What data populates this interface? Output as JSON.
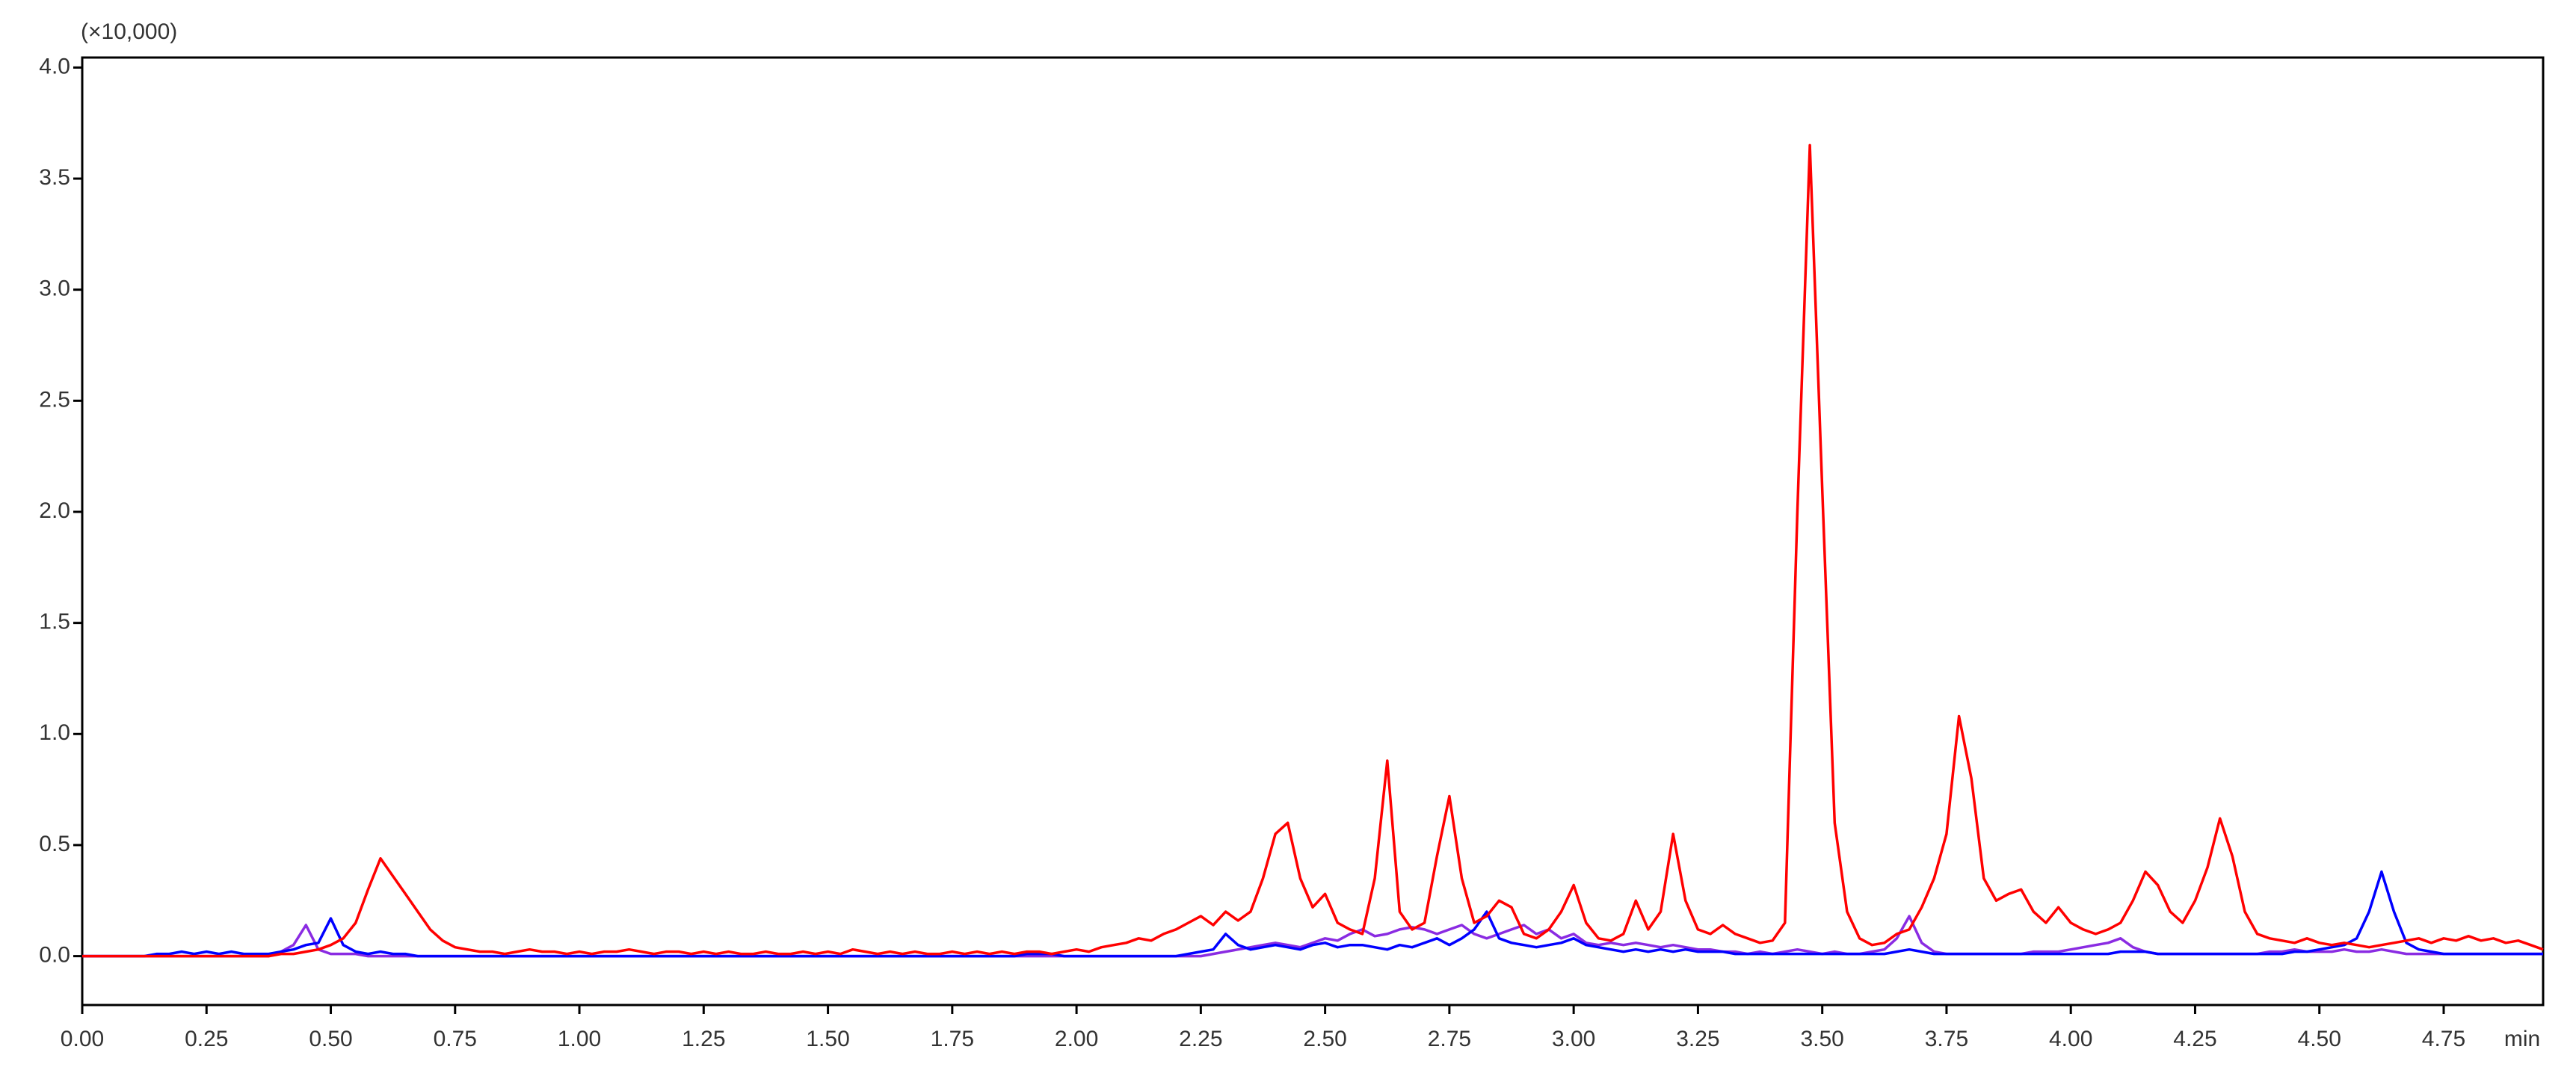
{
  "chart_data": {
    "type": "line",
    "y_unit_label": "(×10,000)",
    "x_label": "min",
    "xlim": [
      0,
      4.95
    ],
    "ylim": [
      -0.22,
      4.045
    ],
    "xticks": [
      {
        "value": 0,
        "label": "0.00"
      },
      {
        "value": 0.25,
        "label": "0.25"
      },
      {
        "value": 0.5,
        "label": "0.50"
      },
      {
        "value": 0.75,
        "label": "0.75"
      },
      {
        "value": 1,
        "label": "1.00"
      },
      {
        "value": 1.25,
        "label": "1.25"
      },
      {
        "value": 1.5,
        "label": "1.50"
      },
      {
        "value": 1.75,
        "label": "1.75"
      },
      {
        "value": 2,
        "label": "2.00"
      },
      {
        "value": 2.25,
        "label": "2.25"
      },
      {
        "value": 2.5,
        "label": "2.50"
      },
      {
        "value": 2.75,
        "label": "2.75"
      },
      {
        "value": 3,
        "label": "3.00"
      },
      {
        "value": 3.25,
        "label": "3.25"
      },
      {
        "value": 3.5,
        "label": "3.50"
      },
      {
        "value": 3.75,
        "label": "3.75"
      },
      {
        "value": 4,
        "label": "4.00"
      },
      {
        "value": 4.25,
        "label": "4.25"
      },
      {
        "value": 4.5,
        "label": "4.50"
      },
      {
        "value": 4.75,
        "label": "4.75"
      }
    ],
    "yticks": [
      {
        "value": 0,
        "label": "0.0"
      },
      {
        "value": 0.5,
        "label": "0.5"
      },
      {
        "value": 1,
        "label": "1.0"
      },
      {
        "value": 1.5,
        "label": "1.5"
      },
      {
        "value": 2,
        "label": "2.0"
      },
      {
        "value": 2.5,
        "label": "2.5"
      },
      {
        "value": 3,
        "label": "3.0"
      },
      {
        "value": 3.5,
        "label": "3.5"
      },
      {
        "value": 4,
        "label": "4.0"
      }
    ],
    "grid": false,
    "x": [
      0,
      0.025,
      0.05,
      0.075,
      0.1,
      0.125,
      0.15,
      0.175,
      0.2,
      0.225,
      0.25,
      0.275,
      0.3,
      0.325,
      0.35,
      0.375,
      0.4,
      0.425,
      0.45,
      0.475,
      0.5,
      0.525,
      0.55,
      0.575,
      0.6,
      0.625,
      0.65,
      0.675,
      0.7,
      0.725,
      0.75,
      0.775,
      0.8,
      0.825,
      0.85,
      0.875,
      0.9,
      0.925,
      0.95,
      0.975,
      1,
      1.025,
      1.05,
      1.075,
      1.1,
      1.125,
      1.15,
      1.175,
      1.2,
      1.225,
      1.25,
      1.275,
      1.3,
      1.325,
      1.35,
      1.375,
      1.4,
      1.425,
      1.45,
      1.475,
      1.5,
      1.525,
      1.55,
      1.575,
      1.6,
      1.625,
      1.65,
      1.675,
      1.7,
      1.725,
      1.75,
      1.775,
      1.8,
      1.825,
      1.85,
      1.875,
      1.9,
      1.925,
      1.95,
      1.975,
      2,
      2.025,
      2.05,
      2.075,
      2.1,
      2.125,
      2.15,
      2.175,
      2.2,
      2.225,
      2.25,
      2.275,
      2.3,
      2.325,
      2.35,
      2.375,
      2.4,
      2.425,
      2.45,
      2.475,
      2.5,
      2.525,
      2.55,
      2.575,
      2.6,
      2.625,
      2.65,
      2.675,
      2.7,
      2.725,
      2.75,
      2.775,
      2.8,
      2.825,
      2.85,
      2.875,
      2.9,
      2.925,
      2.95,
      2.975,
      3,
      3.025,
      3.05,
      3.075,
      3.1,
      3.125,
      3.15,
      3.175,
      3.2,
      3.225,
      3.25,
      3.275,
      3.3,
      3.325,
      3.35,
      3.375,
      3.4,
      3.425,
      3.45,
      3.475,
      3.5,
      3.525,
      3.55,
      3.575,
      3.6,
      3.625,
      3.65,
      3.675,
      3.7,
      3.725,
      3.75,
      3.775,
      3.8,
      3.825,
      3.85,
      3.875,
      3.9,
      3.925,
      3.95,
      3.975,
      4,
      4.025,
      4.05,
      4.075,
      4.1,
      4.125,
      4.15,
      4.175,
      4.2,
      4.225,
      4.25,
      4.275,
      4.3,
      4.325,
      4.35,
      4.375,
      4.4,
      4.425,
      4.45,
      4.475,
      4.5,
      4.525,
      4.55,
      4.575,
      4.6,
      4.625,
      4.65,
      4.675,
      4.7,
      4.725,
      4.75,
      4.775,
      4.8,
      4.825,
      4.85,
      4.875,
      4.9,
      4.925,
      4.95
    ],
    "series": [
      {
        "color": "#8a2be2",
        "values": [
          0,
          0,
          0,
          0,
          0,
          0,
          0,
          0,
          0,
          0,
          0,
          0,
          0,
          0,
          0,
          0,
          0.02,
          0.05,
          0.14,
          0.03,
          0.01,
          0.01,
          0.01,
          0,
          0,
          0,
          0,
          0,
          0,
          0,
          0,
          0,
          0,
          0,
          0,
          0,
          0,
          0,
          0,
          0,
          0,
          0,
          0,
          0,
          0,
          0,
          0,
          0,
          0,
          0,
          0,
          0,
          0,
          0,
          0,
          0,
          0,
          0,
          0,
          0,
          0,
          0,
          0,
          0,
          0,
          0,
          0,
          0,
          0,
          0,
          0,
          0,
          0,
          0,
          0,
          0,
          0,
          0,
          0,
          0,
          0,
          0,
          0,
          0,
          0,
          0,
          0,
          0,
          0,
          0,
          0,
          0.01,
          0.02,
          0.03,
          0.04,
          0.05,
          0.06,
          0.05,
          0.04,
          0.06,
          0.08,
          0.07,
          0.1,
          0.12,
          0.09,
          0.1,
          0.12,
          0.13,
          0.12,
          0.1,
          0.12,
          0.14,
          0.1,
          0.08,
          0.1,
          0.12,
          0.14,
          0.1,
          0.12,
          0.08,
          0.1,
          0.06,
          0.05,
          0.06,
          0.05,
          0.06,
          0.05,
          0.04,
          0.05,
          0.04,
          0.03,
          0.03,
          0.02,
          0.02,
          0.01,
          0.02,
          0.01,
          0.02,
          0.03,
          0.02,
          0.01,
          0.02,
          0.01,
          0.01,
          0.02,
          0.03,
          0.08,
          0.18,
          0.06,
          0.02,
          0.01,
          0.01,
          0.01,
          0.01,
          0.01,
          0.01,
          0.01,
          0.02,
          0.02,
          0.02,
          0.03,
          0.04,
          0.05,
          0.06,
          0.08,
          0.04,
          0.02,
          0.01,
          0.01,
          0.01,
          0.01,
          0.01,
          0.01,
          0.01,
          0.01,
          0.01,
          0.02,
          0.02,
          0.03,
          0.02,
          0.02,
          0.02,
          0.03,
          0.02,
          0.02,
          0.03,
          0.02,
          0.01,
          0.01,
          0.01,
          0.01,
          0.01,
          0.01,
          0.01,
          0.01,
          0.01,
          0.01,
          0.01,
          0.01
        ]
      },
      {
        "color": "#0000ff",
        "values": [
          0,
          0,
          0,
          0,
          0,
          0,
          0.01,
          0.01,
          0.02,
          0.01,
          0.02,
          0.01,
          0.02,
          0.01,
          0.01,
          0.01,
          0.02,
          0.03,
          0.05,
          0.06,
          0.17,
          0.05,
          0.02,
          0.01,
          0.02,
          0.01,
          0.01,
          0,
          0,
          0,
          0,
          0,
          0,
          0,
          0,
          0,
          0,
          0,
          0,
          0,
          0,
          0,
          0,
          0,
          0,
          0,
          0,
          0,
          0,
          0,
          0,
          0,
          0,
          0,
          0,
          0,
          0,
          0,
          0,
          0,
          0,
          0,
          0,
          0,
          0,
          0,
          0,
          0,
          0,
          0,
          0,
          0,
          0,
          0,
          0,
          0,
          0.01,
          0.01,
          0.01,
          0,
          0,
          0,
          0,
          0,
          0,
          0,
          0,
          0,
          0,
          0.01,
          0.02,
          0.03,
          0.1,
          0.05,
          0.03,
          0.04,
          0.05,
          0.04,
          0.03,
          0.05,
          0.06,
          0.04,
          0.05,
          0.05,
          0.04,
          0.03,
          0.05,
          0.04,
          0.06,
          0.08,
          0.05,
          0.08,
          0.12,
          0.2,
          0.08,
          0.06,
          0.05,
          0.04,
          0.05,
          0.06,
          0.08,
          0.05,
          0.04,
          0.03,
          0.02,
          0.03,
          0.02,
          0.03,
          0.02,
          0.03,
          0.02,
          0.02,
          0.02,
          0.01,
          0.01,
          0.01,
          0.01,
          0.01,
          0.01,
          0.01,
          0.01,
          0.01,
          0.01,
          0.01,
          0.01,
          0.01,
          0.02,
          0.03,
          0.02,
          0.01,
          0.01,
          0.01,
          0.01,
          0.01,
          0.01,
          0.01,
          0.01,
          0.01,
          0.01,
          0.01,
          0.01,
          0.01,
          0.01,
          0.01,
          0.02,
          0.02,
          0.02,
          0.01,
          0.01,
          0.01,
          0.01,
          0.01,
          0.01,
          0.01,
          0.01,
          0.01,
          0.01,
          0.01,
          0.02,
          0.02,
          0.03,
          0.04,
          0.05,
          0.08,
          0.2,
          0.38,
          0.2,
          0.06,
          0.03,
          0.02,
          0.01,
          0.01,
          0.01,
          0.01,
          0.01,
          0.01,
          0.01,
          0.01,
          0.01
        ]
      },
      {
        "color": "#ff0000",
        "values": [
          0,
          0,
          0,
          0,
          0,
          0,
          0,
          0,
          0,
          0,
          0,
          0,
          0,
          0,
          0,
          0,
          0.01,
          0.01,
          0.02,
          0.03,
          0.05,
          0.08,
          0.15,
          0.3,
          0.44,
          0.36,
          0.28,
          0.2,
          0.12,
          0.07,
          0.04,
          0.03,
          0.02,
          0.02,
          0.01,
          0.02,
          0.03,
          0.02,
          0.02,
          0.01,
          0.02,
          0.01,
          0.02,
          0.02,
          0.03,
          0.02,
          0.01,
          0.02,
          0.02,
          0.01,
          0.02,
          0.01,
          0.02,
          0.01,
          0.01,
          0.02,
          0.01,
          0.01,
          0.02,
          0.01,
          0.02,
          0.01,
          0.03,
          0.02,
          0.01,
          0.02,
          0.01,
          0.02,
          0.01,
          0.01,
          0.02,
          0.01,
          0.02,
          0.01,
          0.02,
          0.01,
          0.02,
          0.02,
          0.01,
          0.02,
          0.03,
          0.02,
          0.04,
          0.05,
          0.06,
          0.08,
          0.07,
          0.1,
          0.12,
          0.15,
          0.18,
          0.14,
          0.2,
          0.16,
          0.2,
          0.35,
          0.55,
          0.6,
          0.35,
          0.22,
          0.28,
          0.15,
          0.12,
          0.1,
          0.35,
          0.88,
          0.2,
          0.12,
          0.15,
          0.45,
          0.72,
          0.35,
          0.15,
          0.18,
          0.25,
          0.22,
          0.1,
          0.08,
          0.12,
          0.2,
          0.32,
          0.15,
          0.08,
          0.07,
          0.1,
          0.25,
          0.12,
          0.2,
          0.55,
          0.25,
          0.12,
          0.1,
          0.14,
          0.1,
          0.08,
          0.06,
          0.07,
          0.15,
          2.0,
          3.65,
          2.1,
          0.6,
          0.2,
          0.08,
          0.05,
          0.06,
          0.1,
          0.12,
          0.22,
          0.35,
          0.55,
          1.08,
          0.8,
          0.35,
          0.25,
          0.28,
          0.3,
          0.2,
          0.15,
          0.22,
          0.15,
          0.12,
          0.1,
          0.12,
          0.15,
          0.25,
          0.38,
          0.32,
          0.2,
          0.15,
          0.25,
          0.4,
          0.62,
          0.45,
          0.2,
          0.1,
          0.08,
          0.07,
          0.06,
          0.08,
          0.06,
          0.05,
          0.06,
          0.05,
          0.04,
          0.05,
          0.06,
          0.07,
          0.08,
          0.06,
          0.08,
          0.07,
          0.09,
          0.07,
          0.08,
          0.06,
          0.07,
          0.05,
          0.03
        ]
      }
    ]
  }
}
